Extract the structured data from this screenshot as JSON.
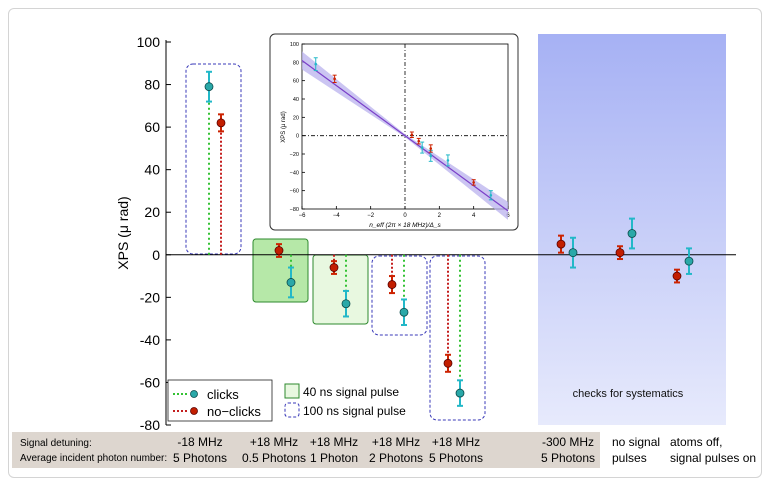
{
  "chart_data": [
    {
      "type": "scatter",
      "title": "",
      "ylabel": "XPS (μ rad)",
      "ylim": [
        -80,
        100
      ],
      "yticks": [
        "100",
        "80",
        "60",
        "40",
        "20",
        "0",
        "-20",
        "-40",
        "-60",
        "-80"
      ],
      "categories": [
        {
          "detuning": "-18 MHz",
          "photons": "5 Photons"
        },
        {
          "detuning": "+18 MHz",
          "photons": "0.5 Photons"
        },
        {
          "detuning": "+18 MHz",
          "photons": "1 Photon"
        },
        {
          "detuning": "+18 MHz",
          "photons": "2 Photons"
        },
        {
          "detuning": "+18 MHz",
          "photons": "5 Photons"
        },
        {
          "detuning": "-300 MHz",
          "photons": "5 Photons"
        },
        {
          "detuning": "no signal",
          "photons": "pulses"
        },
        {
          "detuning": "atoms off,",
          "photons": "signal pulses on"
        }
      ],
      "row_labels": [
        "Signal detuning:",
        "Average incident photon number:"
      ],
      "series": [
        {
          "name": "clicks",
          "color": "#22b8c8",
          "values": [
            79,
            -13,
            -23,
            -27,
            -65,
            1,
            10,
            -3
          ],
          "errors": [
            7,
            7,
            6,
            6,
            6,
            7,
            7,
            6
          ]
        },
        {
          "name": "no−clicks",
          "color": "#cc2200",
          "values": [
            62,
            2,
            -6,
            -14,
            -51,
            5,
            1,
            -10
          ],
          "errors": [
            4,
            3,
            3,
            4,
            4,
            4,
            3,
            3
          ]
        }
      ],
      "legend": {
        "clicks": "clicks",
        "no_clicks": "no−clicks",
        "ns40": "40 ns signal pulse",
        "ns100": "100 ns signal pulse"
      },
      "annotations": {
        "systematics": "checks for systematics"
      },
      "pulse_boxes": [
        {
          "group": 0,
          "kind": "100 ns"
        },
        {
          "group": 1,
          "kind": "40 ns"
        },
        {
          "group": 2,
          "kind": "40 ns"
        },
        {
          "group": 3,
          "kind": "100 ns"
        },
        {
          "group": 4,
          "kind": "100 ns"
        }
      ],
      "grid": false,
      "legend_position": "bottom-left"
    },
    {
      "type": "scatter",
      "title": "",
      "xlabel": "n_eff (2π × 18 MHz)/Δ_s",
      "ylabel": "XPS (μ rad)",
      "xlim": [
        -6,
        6
      ],
      "ylim": [
        -80,
        100
      ],
      "xticks": [
        "−6",
        "−4",
        "−2",
        "0",
        "2",
        "4",
        "6"
      ],
      "yticks": [
        "100",
        "80",
        "60",
        "40",
        "20",
        "0",
        "−20",
        "−40",
        "−60",
        "−80"
      ],
      "fit_line": {
        "x": [
          -6,
          6
        ],
        "y": [
          82,
          -82
        ],
        "color": "#7a3fc8"
      },
      "series": [
        {
          "name": "clicks",
          "color": "#22b8c8",
          "points": [
            {
              "x": -5.2,
              "y": 78,
              "err": 7
            },
            {
              "x": 1.0,
              "y": -13,
              "err": 6
            },
            {
              "x": 1.5,
              "y": -22,
              "err": 6
            },
            {
              "x": 2.5,
              "y": -27,
              "err": 6
            },
            {
              "x": 5.0,
              "y": -65,
              "err": 5
            }
          ]
        },
        {
          "name": "no−clicks",
          "color": "#cc2200",
          "points": [
            {
              "x": -4.1,
              "y": 62,
              "err": 4
            },
            {
              "x": 0.4,
              "y": 1,
              "err": 3
            },
            {
              "x": 0.8,
              "y": -6,
              "err": 3
            },
            {
              "x": 1.5,
              "y": -14,
              "err": 4
            },
            {
              "x": 4.0,
              "y": -51,
              "err": 3
            }
          ]
        }
      ]
    }
  ]
}
